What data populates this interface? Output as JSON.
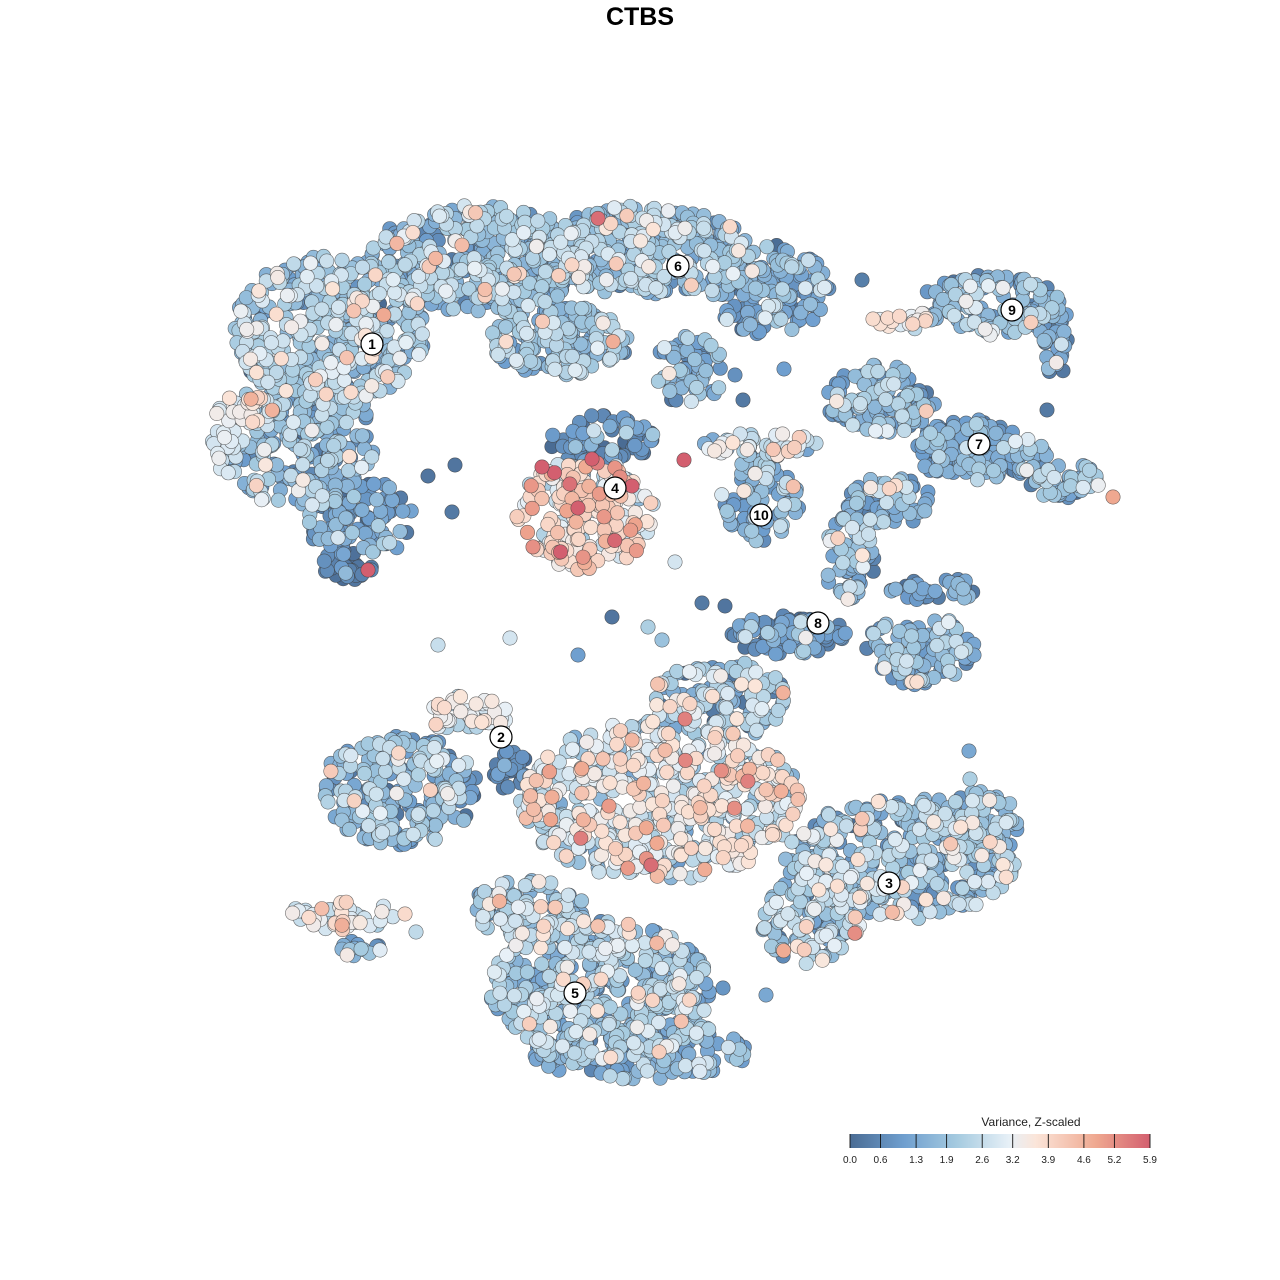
{
  "chart_data": {
    "type": "scatter",
    "title": "CTBS",
    "xlabel": "",
    "ylabel": "",
    "grid": false,
    "axes_visible": false,
    "point_style": "filled circles, dark grey outline",
    "clusters": [
      {
        "id": "1",
        "label": "1",
        "centroid": [
          372,
          344
        ],
        "mean_value": 1.9
      },
      {
        "id": "2",
        "label": "2",
        "centroid": [
          501,
          737
        ],
        "mean_value": 1.8
      },
      {
        "id": "3",
        "label": "3",
        "centroid": [
          889,
          883
        ],
        "mean_value": 1.9
      },
      {
        "id": "4",
        "label": "4",
        "centroid": [
          615,
          488
        ],
        "mean_value": 3.2
      },
      {
        "id": "5",
        "label": "5",
        "centroid": [
          575,
          993
        ],
        "mean_value": 1.7
      },
      {
        "id": "6",
        "label": "6",
        "centroid": [
          678,
          266
        ],
        "mean_value": 1.6
      },
      {
        "id": "7",
        "label": "7",
        "centroid": [
          979,
          444
        ],
        "mean_value": 1.3
      },
      {
        "id": "8",
        "label": "8",
        "centroid": [
          818,
          623
        ],
        "mean_value": 1.0
      },
      {
        "id": "9",
        "label": "9",
        "centroid": [
          1012,
          310
        ],
        "mean_value": 1.4
      },
      {
        "id": "10",
        "label": "10",
        "centroid": [
          761,
          515
        ],
        "mean_value": 1.5
      }
    ],
    "legend": {
      "title": "Variance, Z-scaled",
      "position": "bottom-right",
      "ticks": [
        "0.0",
        "0.6",
        "1.3",
        "1.9",
        "2.6",
        "3.2",
        "3.9",
        "4.6",
        "5.2",
        "5.9"
      ],
      "min": 0.0,
      "max": 5.9,
      "colors": [
        "#4a6c94",
        "#6f9fcf",
        "#a6cbe0",
        "#e7f0f7",
        "#fbe5d9",
        "#efa890",
        "#d35f6f"
      ]
    }
  }
}
